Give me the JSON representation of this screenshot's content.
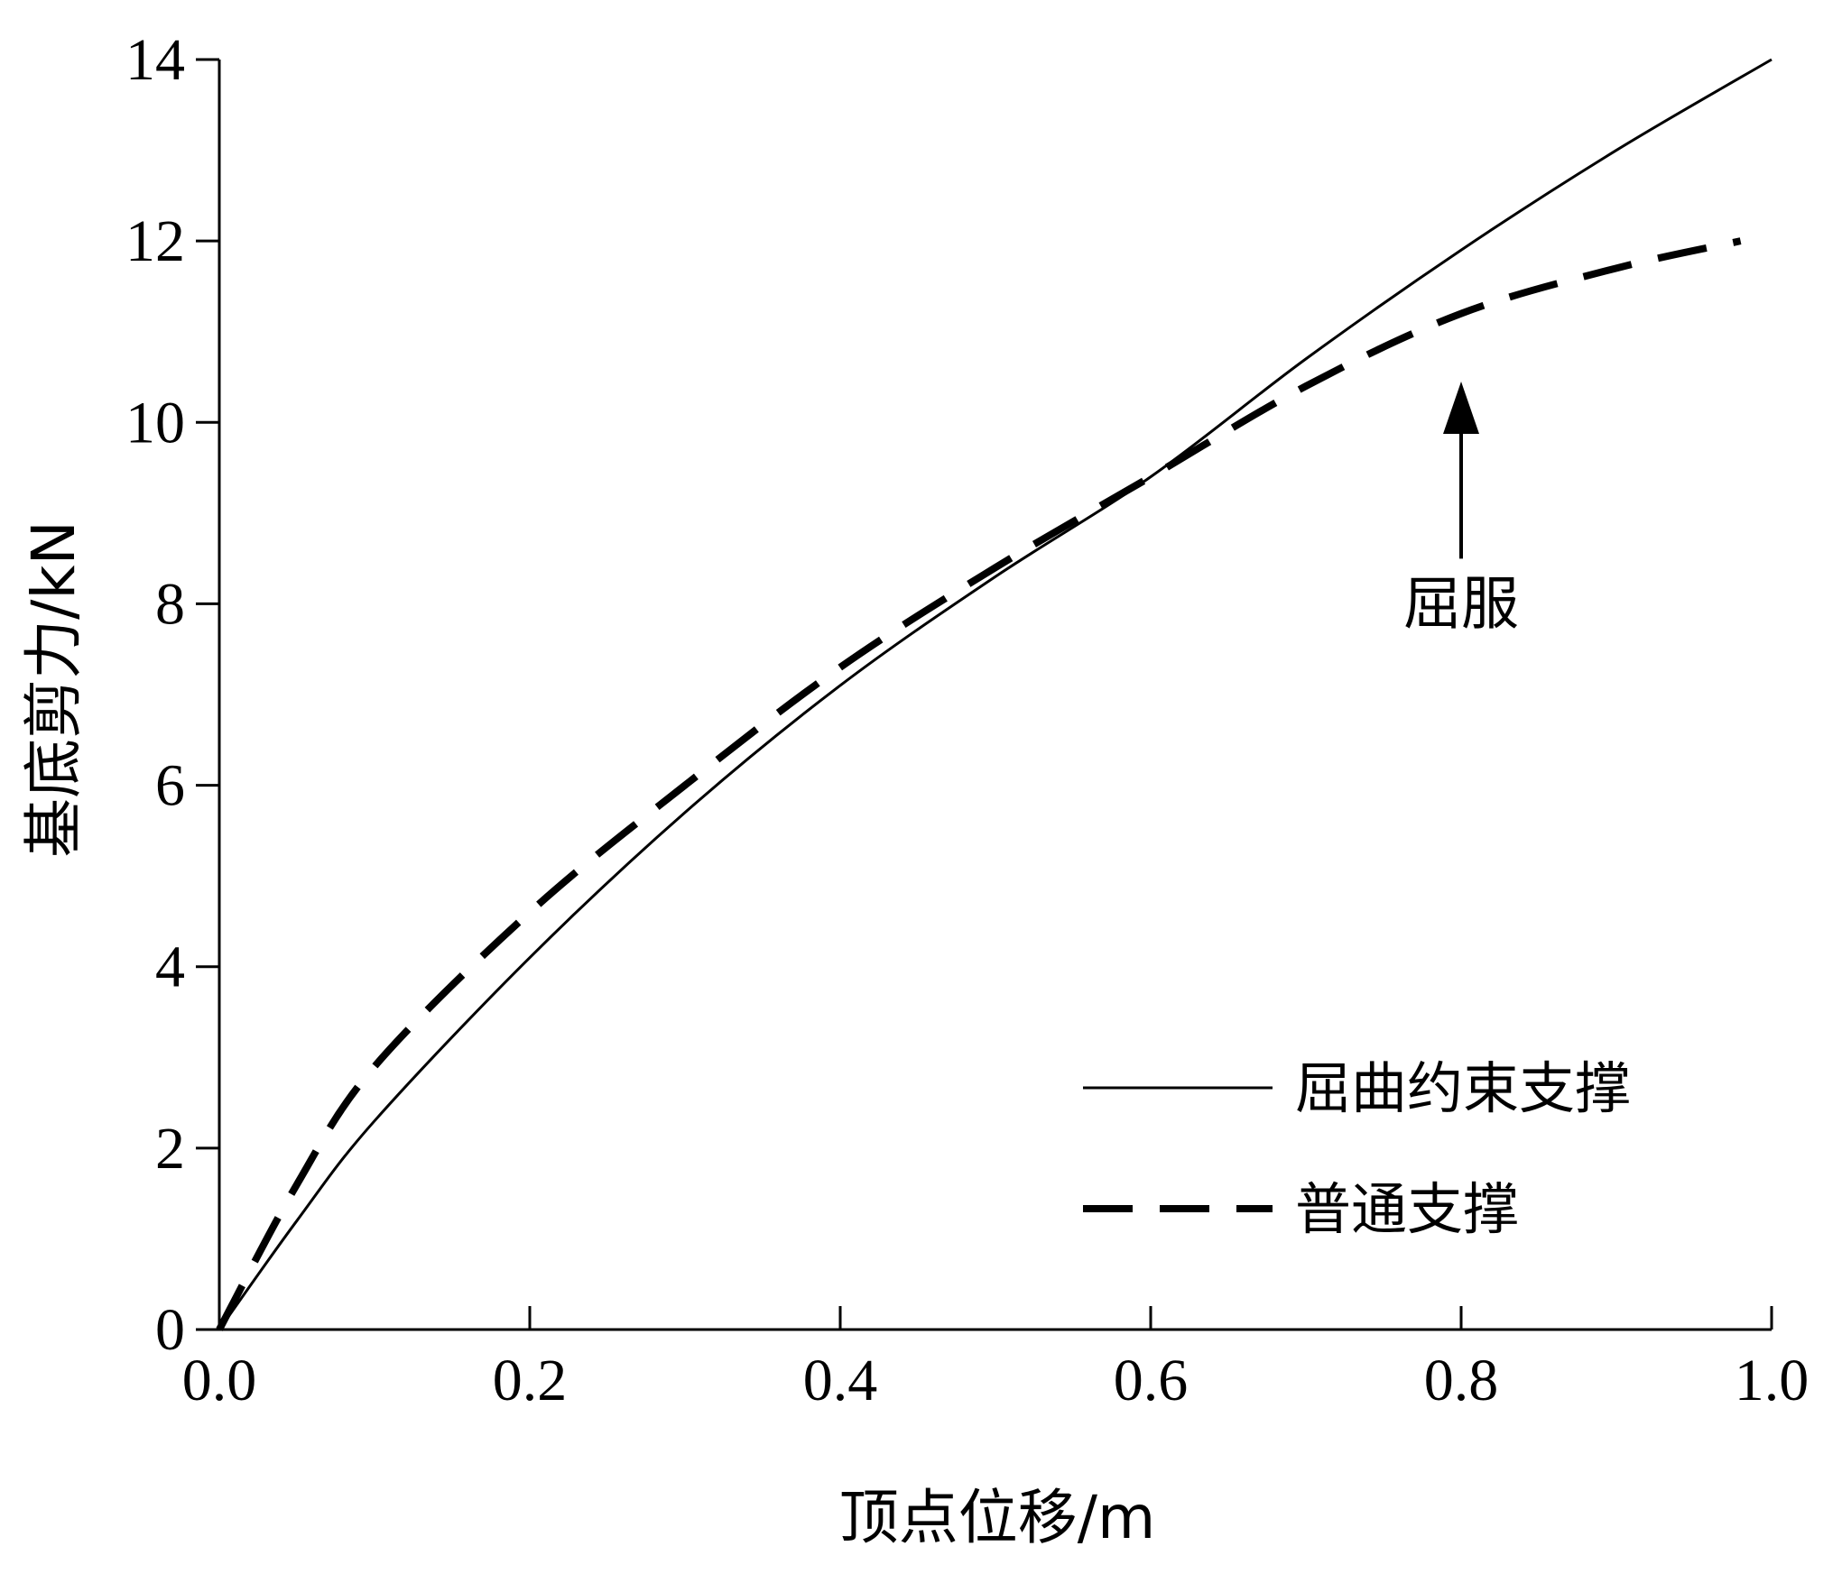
{
  "chart_data": {
    "type": "line",
    "title": "",
    "xlabel": "顶点位移/m",
    "ylabel": "基底剪力/kN",
    "xlim": [
      0.0,
      1.0
    ],
    "ylim": [
      0,
      14
    ],
    "xticks": [
      "0.0",
      "0.2",
      "0.4",
      "0.6",
      "0.8",
      "1.0"
    ],
    "yticks": [
      "0",
      "2",
      "4",
      "6",
      "8",
      "10",
      "12",
      "14"
    ],
    "grid": false,
    "legend_position": "bottom-right",
    "series": [
      {
        "name": "屈曲约束支撑",
        "style": "solid",
        "color": "#000000",
        "x": [
          0.0,
          0.05,
          0.1,
          0.2,
          0.3,
          0.4,
          0.5,
          0.6,
          0.7,
          0.8,
          0.9,
          1.0
        ],
        "y": [
          0.0,
          1.2,
          2.3,
          4.1,
          5.7,
          7.1,
          8.3,
          9.4,
          10.7,
          11.9,
          13.0,
          14.0
        ]
      },
      {
        "name": "普通支撑",
        "style": "dashed",
        "color": "#000000",
        "x": [
          0.0,
          0.05,
          0.1,
          0.2,
          0.3,
          0.4,
          0.5,
          0.6,
          0.7,
          0.8,
          0.9,
          0.98
        ],
        "y": [
          0.0,
          1.6,
          2.9,
          4.6,
          6.0,
          7.3,
          8.4,
          9.4,
          10.4,
          11.2,
          11.7,
          12.0
        ]
      }
    ],
    "annotations": [
      {
        "text": "屈服",
        "x": 0.8,
        "y": 8.0,
        "arrow_to": [
          0.8,
          10.6
        ]
      }
    ]
  }
}
